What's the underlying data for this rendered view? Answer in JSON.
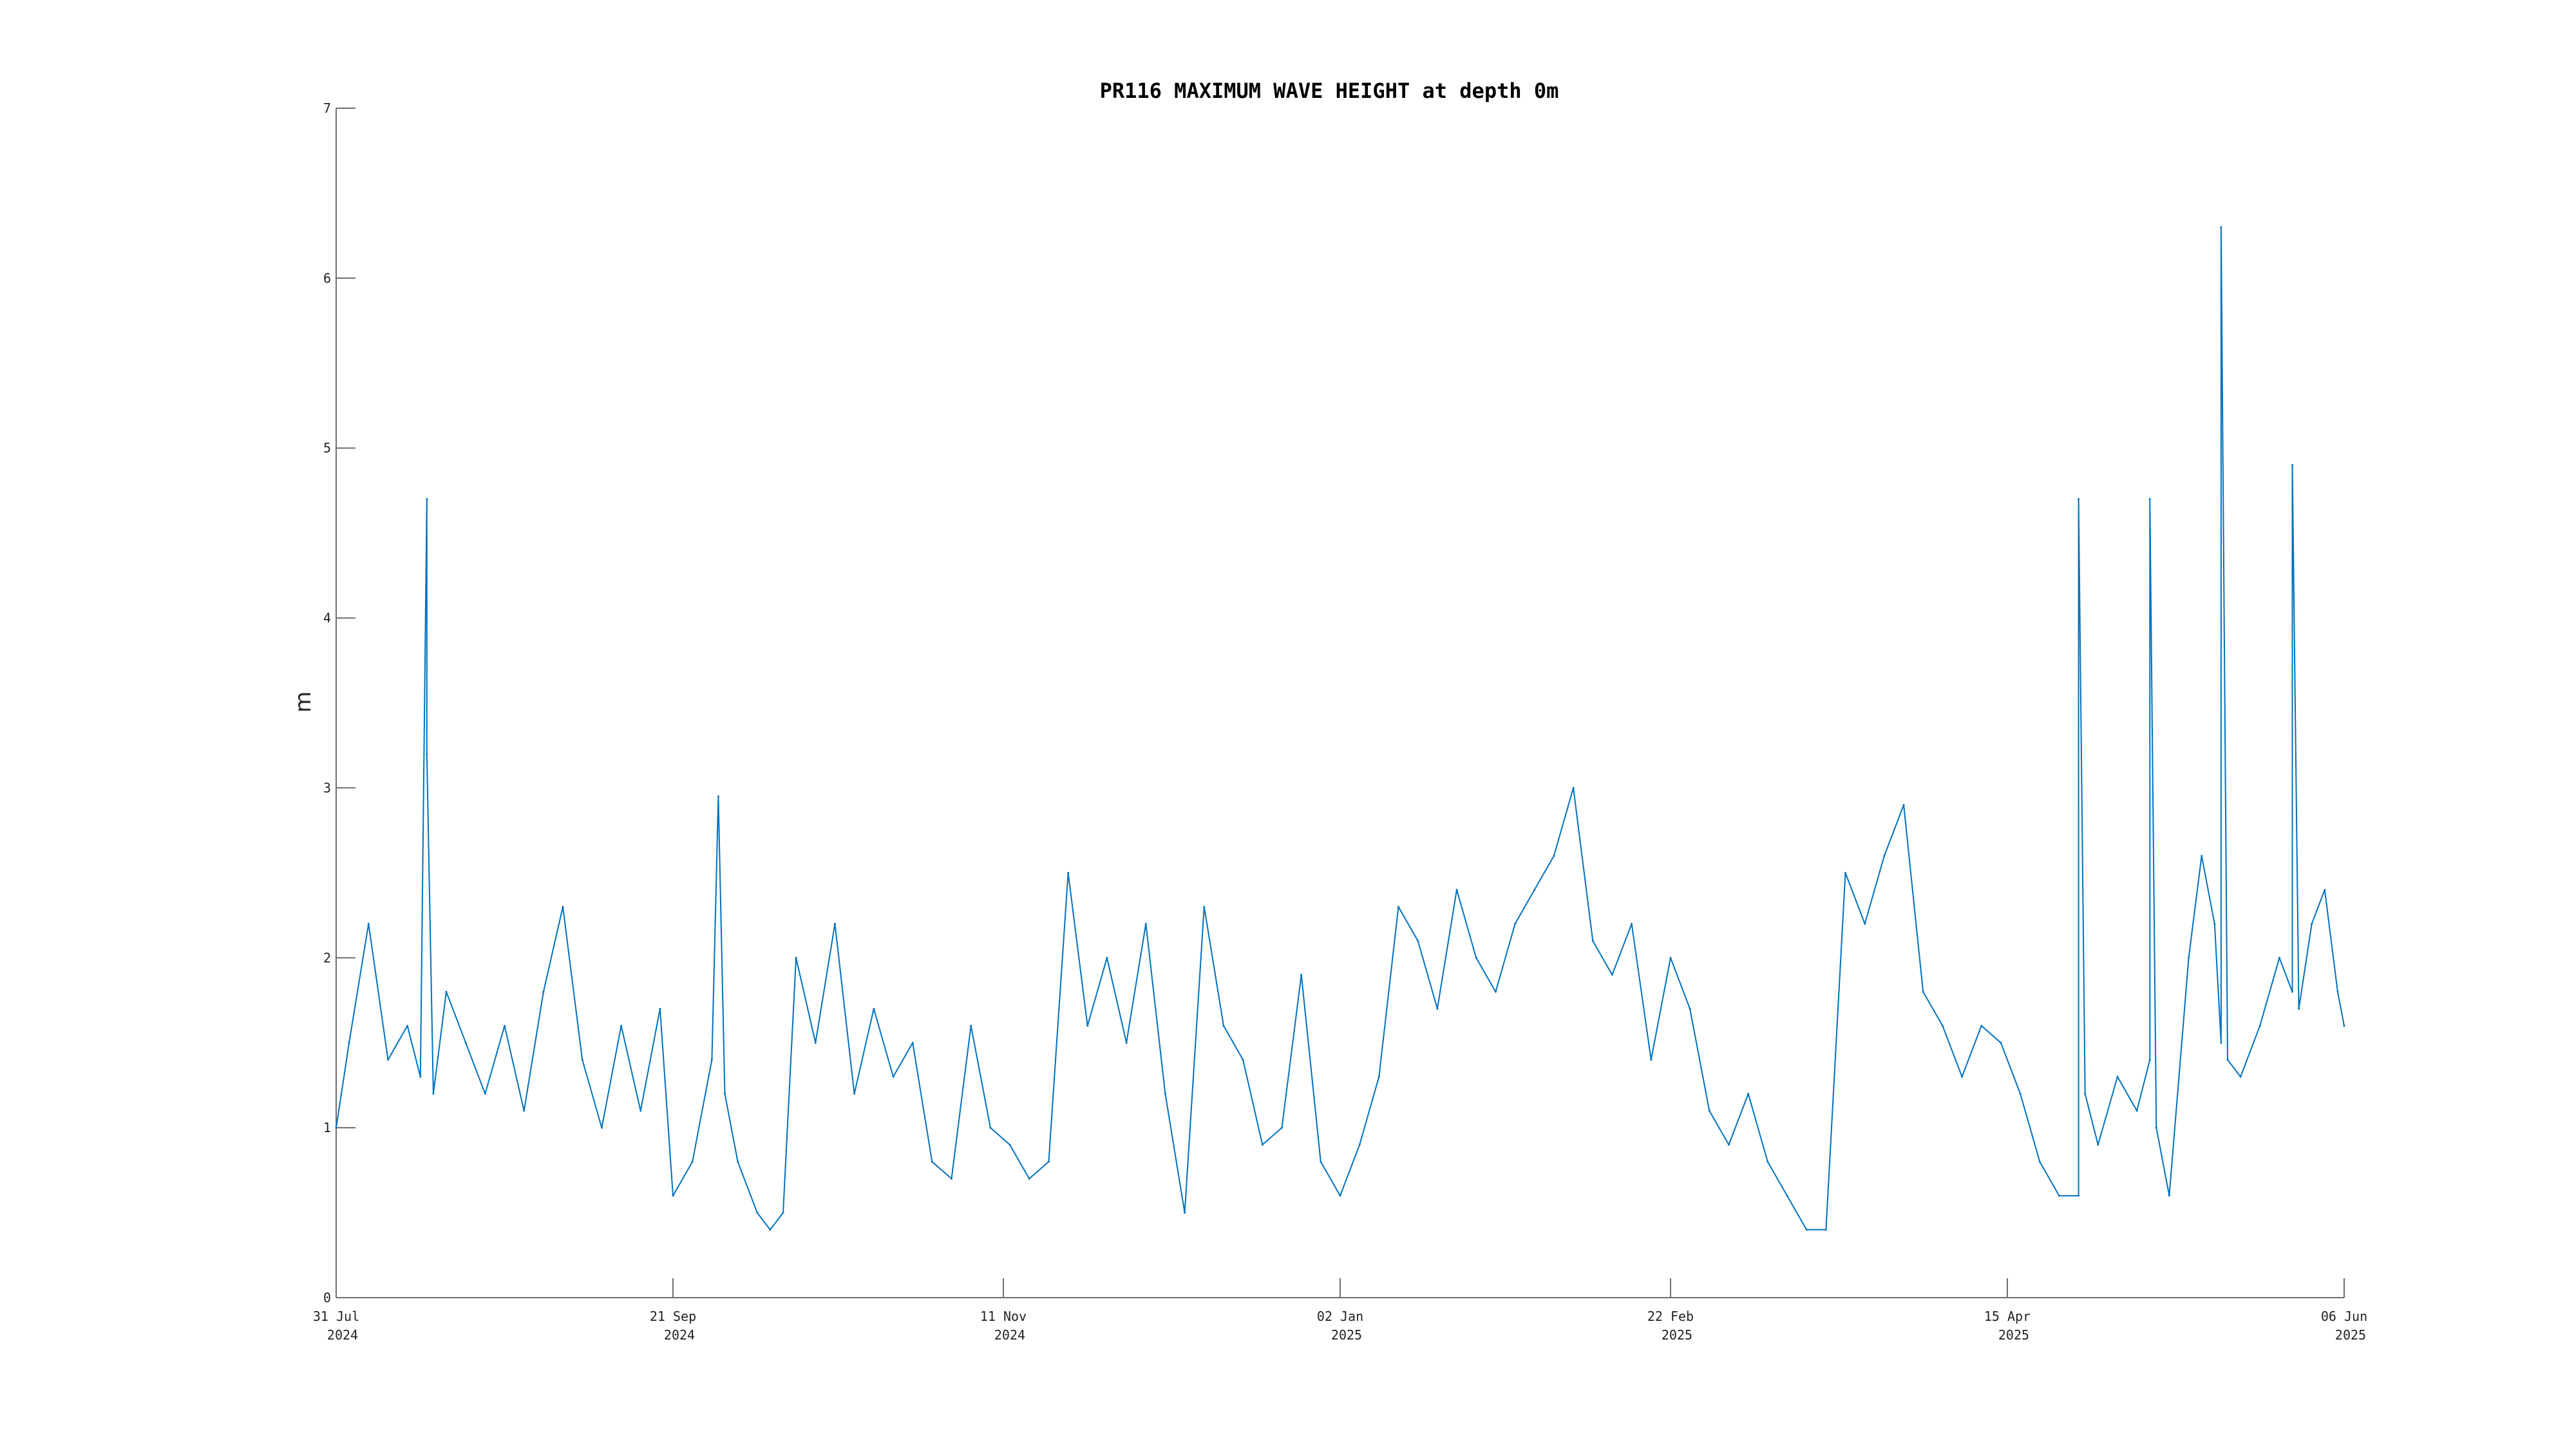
{
  "chart_data": {
    "type": "line",
    "title": "PR116 MAXIMUM WAVE HEIGHT at depth 0m",
    "xlabel": "",
    "ylabel": "m",
    "x_range": [
      "2024-07-31",
      "2025-06-06"
    ],
    "ylim": [
      0,
      7
    ],
    "yticks": [
      0,
      1,
      2,
      3,
      4,
      5,
      6,
      7
    ],
    "xticks": [
      {
        "date": "2024-07-31",
        "label": "31 Jul",
        "sublabel": "2024"
      },
      {
        "date": "2024-09-21",
        "label": "21 Sep",
        "sublabel": "2024"
      },
      {
        "date": "2024-11-11",
        "label": "11 Nov",
        "sublabel": "2024"
      },
      {
        "date": "2025-01-02",
        "label": "02 Jan",
        "sublabel": "2025"
      },
      {
        "date": "2025-02-22",
        "label": "22 Feb",
        "sublabel": "2025"
      },
      {
        "date": "2025-04-15",
        "label": "15 Apr",
        "sublabel": "2025"
      },
      {
        "date": "2025-06-06",
        "label": "06 Jun",
        "sublabel": "2025"
      }
    ],
    "grid": false,
    "legend": "none",
    "series": [
      {
        "color": "#0072BD",
        "x": [
          "2024-07-31",
          "2024-08-02",
          "2024-08-05",
          "2024-08-08",
          "2024-08-11",
          "2024-08-13",
          "2024-08-14",
          "2024-08-14",
          "2024-08-15",
          "2024-08-17",
          "2024-08-20",
          "2024-08-23",
          "2024-08-26",
          "2024-08-29",
          "2024-09-01",
          "2024-09-04",
          "2024-09-07",
          "2024-09-10",
          "2024-09-13",
          "2024-09-16",
          "2024-09-19",
          "2024-09-21",
          "2024-09-24",
          "2024-09-27",
          "2024-09-28",
          "2024-09-29",
          "2024-10-01",
          "2024-10-04",
          "2024-10-06",
          "2024-10-08",
          "2024-10-10",
          "2024-10-13",
          "2024-10-16",
          "2024-10-19",
          "2024-10-22",
          "2024-10-25",
          "2024-10-28",
          "2024-10-31",
          "2024-11-03",
          "2024-11-06",
          "2024-11-09",
          "2024-11-12",
          "2024-11-15",
          "2024-11-18",
          "2024-11-21",
          "2024-11-24",
          "2024-11-27",
          "2024-11-30",
          "2024-12-03",
          "2024-12-06",
          "2024-12-09",
          "2024-12-12",
          "2024-12-15",
          "2024-12-18",
          "2024-12-21",
          "2024-12-24",
          "2024-12-27",
          "2024-12-30",
          "2025-01-02",
          "2025-01-05",
          "2025-01-08",
          "2025-01-11",
          "2025-01-14",
          "2025-01-17",
          "2025-01-20",
          "2025-01-23",
          "2025-01-26",
          "2025-01-29",
          "2025-02-01",
          "2025-02-04",
          "2025-02-07",
          "2025-02-10",
          "2025-02-13",
          "2025-02-16",
          "2025-02-19",
          "2025-02-22",
          "2025-02-25",
          "2025-02-28",
          "2025-03-03",
          "2025-03-06",
          "2025-03-09",
          "2025-03-12",
          "2025-03-15",
          "2025-03-18",
          "2025-03-21",
          "2025-03-24",
          "2025-03-27",
          "2025-03-30",
          "2025-04-02",
          "2025-04-05",
          "2025-04-08",
          "2025-04-11",
          "2025-04-14",
          "2025-04-17",
          "2025-04-20",
          "2025-04-23",
          "2025-04-26",
          "2025-04-26",
          "2025-04-27",
          "2025-04-29",
          "2025-05-02",
          "2025-05-05",
          "2025-05-07",
          "2025-05-07",
          "2025-05-08",
          "2025-05-10",
          "2025-05-13",
          "2025-05-15",
          "2025-05-17",
          "2025-05-18",
          "2025-05-18",
          "2025-05-19",
          "2025-05-21",
          "2025-05-24",
          "2025-05-27",
          "2025-05-29",
          "2025-05-29",
          "2025-05-30",
          "2025-06-01",
          "2025-06-03",
          "2025-06-05",
          "2025-06-06"
        ],
        "values": [
          1.0,
          1.5,
          2.2,
          1.4,
          1.6,
          1.3,
          4.7,
          3.2,
          1.2,
          1.8,
          1.5,
          1.2,
          1.6,
          1.1,
          1.8,
          2.3,
          1.4,
          1.0,
          1.6,
          1.1,
          1.7,
          0.6,
          0.8,
          1.4,
          2.95,
          1.2,
          0.8,
          0.5,
          0.4,
          0.5,
          2.0,
          1.5,
          2.2,
          1.2,
          1.7,
          1.3,
          1.5,
          0.8,
          0.7,
          1.6,
          1.0,
          0.9,
          0.7,
          0.8,
          2.5,
          1.6,
          2.0,
          1.5,
          2.2,
          1.2,
          0.5,
          2.3,
          1.6,
          1.4,
          0.9,
          1.0,
          1.9,
          0.8,
          0.6,
          0.9,
          1.3,
          2.3,
          2.1,
          1.7,
          2.4,
          2.0,
          1.8,
          2.2,
          2.4,
          2.6,
          3.0,
          2.1,
          1.9,
          2.2,
          1.4,
          2.0,
          1.7,
          1.1,
          0.9,
          1.2,
          0.8,
          0.6,
          0.4,
          0.4,
          2.5,
          2.2,
          2.6,
          2.9,
          1.8,
          1.6,
          1.3,
          1.6,
          1.5,
          1.2,
          0.8,
          0.6,
          0.6,
          4.7,
          1.2,
          0.9,
          1.3,
          1.1,
          1.4,
          4.7,
          1.0,
          0.6,
          2.0,
          2.6,
          2.2,
          1.5,
          6.3,
          1.4,
          1.3,
          1.6,
          2.0,
          1.8,
          4.9,
          1.7,
          2.2,
          2.4,
          1.8,
          1.6
        ]
      }
    ]
  }
}
